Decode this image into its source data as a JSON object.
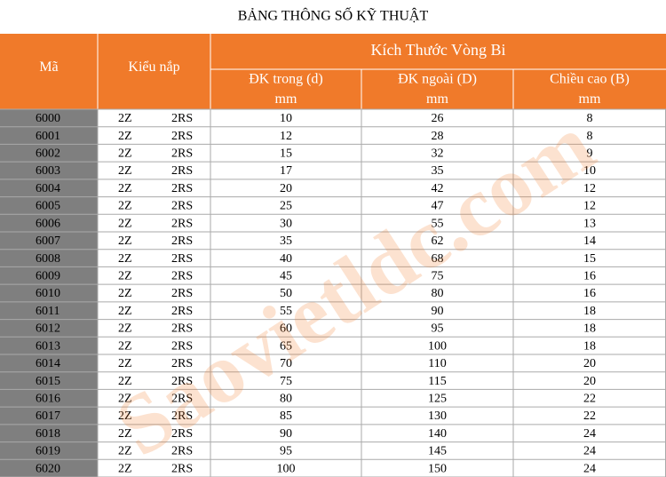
{
  "title": "BẢNG THÔNG SỐ KỸ THUẬT",
  "watermark": "Saovietldc.com",
  "table": {
    "header": {
      "code": "Mã",
      "cap": "Kiểu nắp",
      "group": "Kích Thước Vòng Bi",
      "columns": [
        {
          "label": "ĐK trong (d)",
          "unit": "mm"
        },
        {
          "label": "ĐK ngoài (D)",
          "unit": "mm"
        },
        {
          "label": "Chiều cao (B)",
          "unit": "mm"
        }
      ]
    },
    "rows": [
      [
        "6000",
        "2Z",
        "2RS",
        10,
        26,
        8
      ],
      [
        "6001",
        "2Z",
        "2RS",
        12,
        28,
        8
      ],
      [
        "6002",
        "2Z",
        "2RS",
        15,
        32,
        9
      ],
      [
        "6003",
        "2Z",
        "2RS",
        17,
        35,
        10
      ],
      [
        "6004",
        "2Z",
        "2RS",
        20,
        42,
        12
      ],
      [
        "6005",
        "2Z",
        "2RS",
        25,
        47,
        12
      ],
      [
        "6006",
        "2Z",
        "2RS",
        30,
        55,
        13
      ],
      [
        "6007",
        "2Z",
        "2RS",
        35,
        62,
        14
      ],
      [
        "6008",
        "2Z",
        "2RS",
        40,
        68,
        15
      ],
      [
        "6009",
        "2Z",
        "2RS",
        45,
        75,
        16
      ],
      [
        "6010",
        "2Z",
        "2RS",
        50,
        80,
        16
      ],
      [
        "6011",
        "2Z",
        "2RS",
        55,
        90,
        18
      ],
      [
        "6012",
        "2Z",
        "2RS",
        60,
        95,
        18
      ],
      [
        "6013",
        "2Z",
        "2RS",
        65,
        100,
        18
      ],
      [
        "6014",
        "2Z",
        "2RS",
        70,
        110,
        20
      ],
      [
        "6015",
        "2Z",
        "2RS",
        75,
        115,
        20
      ],
      [
        "6016",
        "2Z",
        "2RS",
        80,
        125,
        22
      ],
      [
        "6017",
        "2Z",
        "2RS",
        85,
        130,
        22
      ],
      [
        "6018",
        "2Z",
        "2RS",
        90,
        140,
        24
      ],
      [
        "6019",
        "2Z",
        "2RS",
        95,
        145,
        24
      ],
      [
        "6020",
        "2Z",
        "2RS",
        100,
        150,
        24
      ]
    ]
  }
}
